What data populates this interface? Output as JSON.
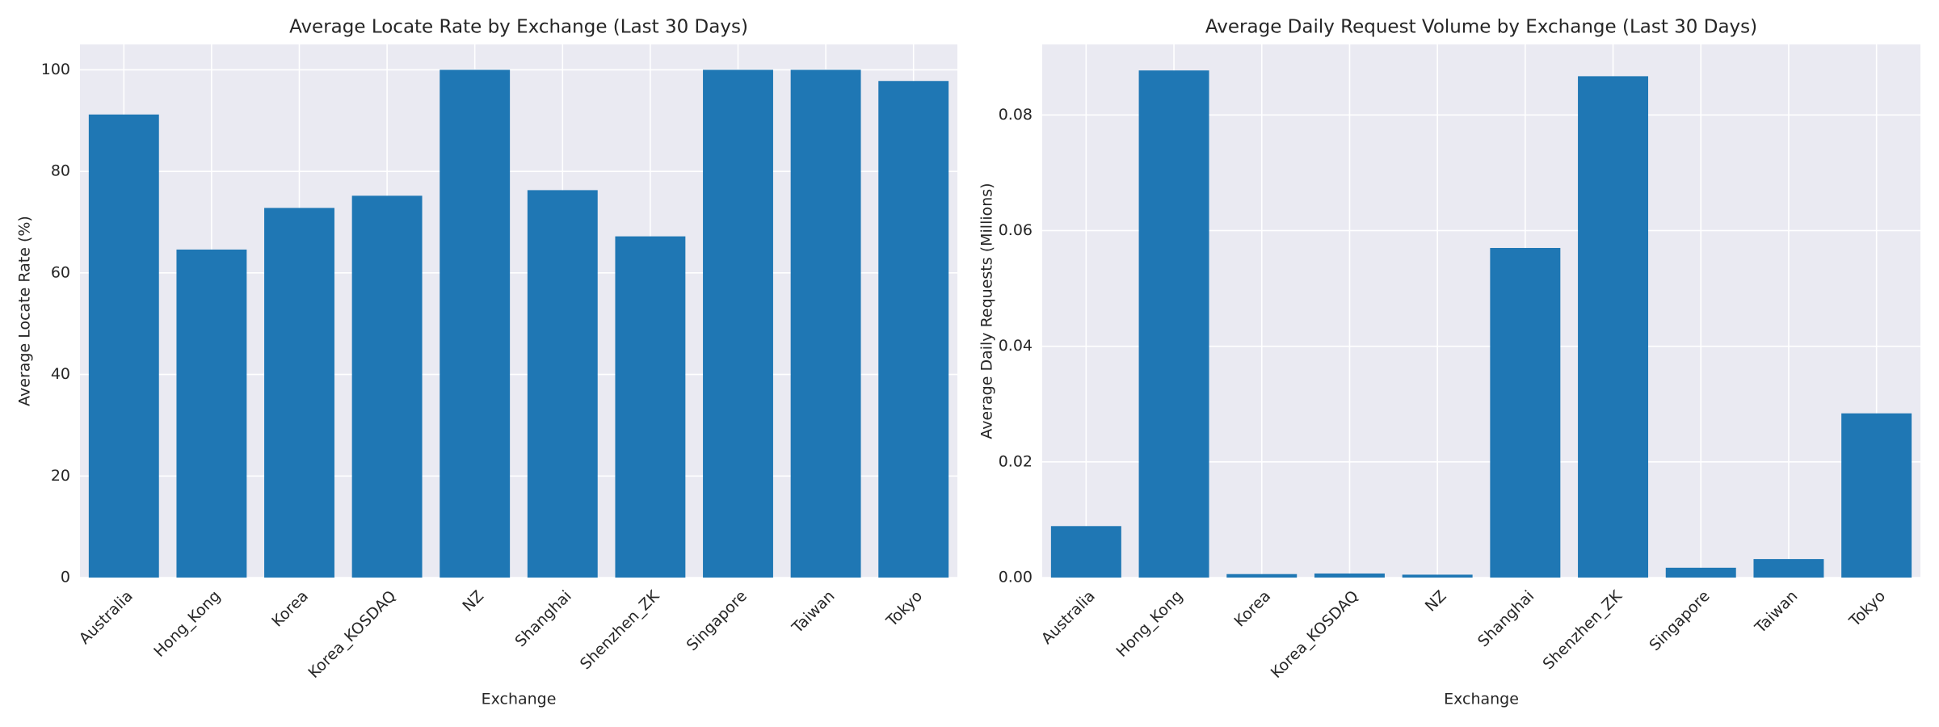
{
  "chart_data": [
    {
      "type": "bar",
      "title": "Average Locate Rate by Exchange (Last 30 Days)",
      "x_label": "Exchange",
      "y_label": "Average Locate Rate (%)",
      "categories": [
        "Australia",
        "Hong_Kong",
        "Korea",
        "Korea_KOSDAQ",
        "NZ",
        "Shanghai",
        "Shenzhen_ZK",
        "Singapore",
        "Taiwan",
        "Tokyo"
      ],
      "values": [
        91.2,
        64.6,
        72.8,
        75.2,
        100,
        76.3,
        67.2,
        100,
        100,
        97.8
      ],
      "color": "#1f77b4",
      "ylim": [
        0,
        105
      ],
      "yticks": [
        0,
        20,
        40,
        60,
        80,
        100
      ],
      "grid": true
    },
    {
      "type": "bar",
      "title": "Average Daily Request Volume by Exchange (Last 30 Days)",
      "x_label": "Exchange",
      "y_label": "Average Daily Requests (Millions)",
      "categories": [
        "Australia",
        "Hong_Kong",
        "Korea",
        "Korea_KOSDAQ",
        "NZ",
        "Shanghai",
        "Shenzhen_ZK",
        "Singapore",
        "Taiwan",
        "Tokyo"
      ],
      "values": [
        0.0089,
        0.0877,
        0.0006,
        0.0007,
        0.0005,
        0.057,
        0.0867,
        0.0017,
        0.0032,
        0.0284
      ],
      "color": "#1f77b4",
      "ylim": [
        0,
        0.0922
      ],
      "yticks": [
        {
          "value": 0,
          "label": "0.00"
        },
        {
          "value": 0.02,
          "label": "0.02"
        },
        {
          "value": 0.04,
          "label": "0.04"
        },
        {
          "value": 0.06,
          "label": "0.06"
        },
        {
          "value": 0.08,
          "label": "0.08"
        }
      ],
      "grid": true
    }
  ]
}
